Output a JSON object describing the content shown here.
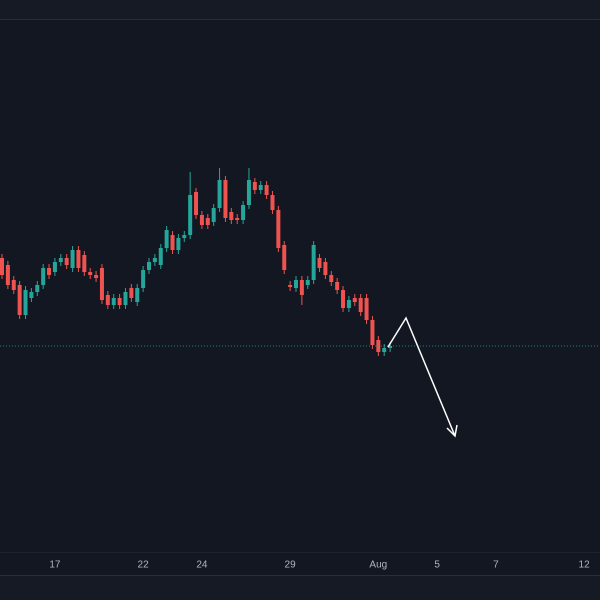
{
  "chart_data": {
    "type": "candlestick",
    "categories": [
      null,
      null,
      null,
      null,
      null,
      null,
      null,
      null,
      null,
      "17",
      null,
      null,
      null,
      null,
      null,
      null,
      null,
      null,
      null,
      null,
      null,
      null,
      null,
      null,
      "22",
      null,
      null,
      null,
      null,
      null,
      null,
      null,
      null,
      null,
      "24",
      null,
      null,
      null,
      null,
      null,
      null,
      null,
      null,
      null,
      null,
      null,
      null,
      null,
      null,
      "29",
      null,
      null,
      null,
      null,
      null,
      null,
      null,
      null,
      null,
      null,
      null,
      null,
      null,
      null,
      "Aug",
      null,
      null,
      null,
      null,
      null,
      null,
      null,
      null,
      null,
      "5",
      null,
      null,
      null,
      null,
      null,
      null,
      null,
      null,
      null,
      "7",
      null,
      null,
      null,
      null,
      null,
      null,
      null,
      null,
      null,
      null,
      null,
      null,
      null,
      null,
      "12"
    ],
    "open": [
      342,
      335,
      320,
      315,
      285,
      302,
      308,
      315,
      332,
      328,
      338,
      342,
      332,
      350,
      345,
      328,
      325,
      332,
      305,
      295,
      302,
      295,
      312,
      298,
      312,
      330,
      338,
      335,
      352,
      365,
      350,
      362,
      365,
      408,
      385,
      382,
      378,
      392,
      420,
      388,
      382,
      380,
      395,
      418,
      410,
      415,
      405,
      390,
      355,
      315,
      312,
      320,
      315,
      320,
      342,
      338,
      325,
      318,
      310,
      292,
      302,
      302,
      302,
      280,
      260,
      248,
      252,
      null,
      null,
      null,
      null,
      null,
      null,
      null,
      null,
      null,
      null,
      null,
      null,
      null,
      null,
      null,
      null,
      null,
      null,
      null,
      null,
      null,
      null,
      null,
      null,
      null,
      null,
      null,
      null,
      null,
      null,
      null,
      null,
      null
    ],
    "high": [
      346,
      339,
      324,
      319,
      314,
      312,
      319,
      336,
      336,
      342,
      346,
      346,
      354,
      354,
      349,
      332,
      329,
      336,
      309,
      306,
      306,
      312,
      316,
      316,
      334,
      342,
      346,
      356,
      374,
      369,
      366,
      369,
      428,
      412,
      389,
      386,
      396,
      432,
      424,
      392,
      386,
      399,
      432,
      422,
      419,
      419,
      409,
      394,
      359,
      319,
      324,
      324,
      324,
      359,
      346,
      342,
      329,
      322,
      314,
      304,
      306,
      306,
      306,
      284,
      264,
      256,
      258,
      null,
      null,
      null,
      null,
      null,
      null,
      null,
      null,
      null,
      null,
      null,
      null,
      null,
      null,
      null,
      null,
      null,
      null,
      null,
      null,
      null,
      null,
      null,
      null,
      null,
      null,
      null,
      null,
      null,
      null,
      null,
      null,
      null
    ],
    "low": [
      321,
      311,
      306,
      281,
      281,
      298,
      304,
      311,
      321,
      324,
      334,
      331,
      328,
      328,
      324,
      321,
      318,
      296,
      291,
      291,
      291,
      291,
      298,
      294,
      308,
      326,
      334,
      331,
      348,
      346,
      346,
      358,
      361,
      381,
      371,
      371,
      374,
      388,
      378,
      376,
      376,
      376,
      391,
      406,
      406,
      401,
      386,
      348,
      326,
      309,
      308,
      295,
      311,
      316,
      328,
      321,
      314,
      306,
      288,
      288,
      294,
      284,
      276,
      251,
      244,
      244,
      248,
      null,
      null,
      null,
      null,
      null,
      null,
      null,
      null,
      null,
      null,
      null,
      null,
      null,
      null,
      null,
      null,
      null,
      null,
      null,
      null,
      null,
      null,
      null,
      null,
      null,
      null,
      null,
      null,
      null,
      null,
      null,
      null,
      null
    ],
    "close": [
      325,
      315,
      310,
      285,
      310,
      308,
      315,
      332,
      325,
      338,
      342,
      335,
      350,
      332,
      328,
      325,
      322,
      300,
      295,
      302,
      295,
      308,
      302,
      312,
      330,
      338,
      342,
      352,
      370,
      350,
      362,
      365,
      405,
      385,
      375,
      375,
      392,
      420,
      382,
      380,
      380,
      395,
      420,
      410,
      415,
      405,
      390,
      352,
      330,
      313,
      320,
      305,
      320,
      355,
      332,
      325,
      318,
      310,
      292,
      300,
      298,
      288,
      280,
      255,
      248,
      252,
      254,
      null,
      null,
      null,
      null,
      null,
      null,
      null,
      null,
      null,
      null,
      null,
      null,
      null,
      null,
      null,
      null,
      null,
      null,
      null,
      null,
      null,
      null,
      null,
      null,
      null,
      null,
      null,
      null,
      null,
      null,
      null,
      null,
      null
    ],
    "ylim": [
      45,
      580
    ],
    "up_color": "#26a69a",
    "down_color": "#ef5350",
    "grid": false
  }
}
